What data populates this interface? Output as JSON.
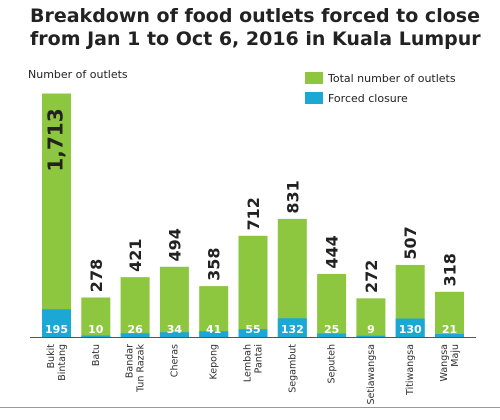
{
  "chart_data": {
    "type": "bar",
    "title_lines": [
      "Breakdown of food outlets forced to close",
      "from Jan 1 to Oct 6, 2016 in Kuala Lumpur"
    ],
    "ylabel": "Number of outlets",
    "ylim": [
      0,
      1780
    ],
    "categories": [
      [
        "Bukit",
        "Bintang"
      ],
      [
        "Batu"
      ],
      [
        "Bandar",
        "Tun Razak"
      ],
      [
        "Cheras"
      ],
      [
        "Kepong"
      ],
      [
        "Lembah",
        "Pantai"
      ],
      [
        "Segambut"
      ],
      [
        "Seputeh"
      ],
      [
        "Setiawangsa"
      ],
      [
        "Titiwangsa"
      ],
      [
        "Wangsa",
        "Maju"
      ]
    ],
    "series": [
      {
        "name": "Total number of outlets",
        "color": "#8dc63f",
        "values": [
          1713,
          278,
          421,
          494,
          358,
          712,
          831,
          444,
          272,
          507,
          318
        ],
        "labels": [
          "1,713",
          "278",
          "421",
          "494",
          "358",
          "712",
          "831",
          "444",
          "272",
          "507",
          "318"
        ]
      },
      {
        "name": "Forced closure",
        "color": "#1ba8d4",
        "values": [
          195,
          10,
          26,
          34,
          41,
          55,
          132,
          25,
          9,
          130,
          21
        ],
        "labels": [
          "195",
          "10",
          "26",
          "34",
          "41",
          "55",
          "132",
          "25",
          "9",
          "130",
          "21"
        ]
      }
    ],
    "legend_position": "top-right",
    "grid": false
  }
}
